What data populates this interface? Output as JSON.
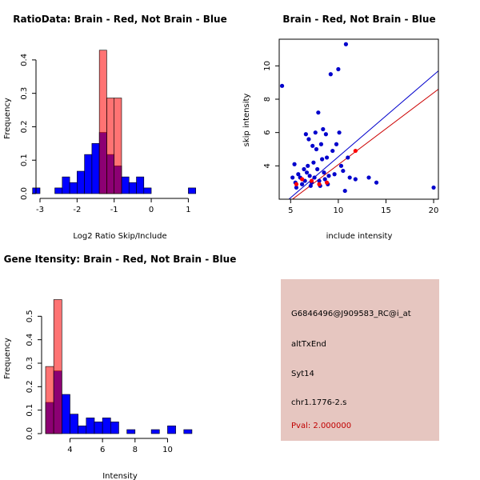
{
  "chart_data": [
    {
      "type": "bar",
      "title": "RatioData: Brain - Red, Not Brain - Blue",
      "xlabel": "Log2 Ratio Skip/Include",
      "ylabel": "Frequency",
      "xlim": [
        -3,
        1.25
      ],
      "ylim": [
        0,
        0.45
      ],
      "xticks": [
        -3,
        -2,
        -1,
        0,
        1
      ],
      "yticks": [
        0.0,
        0.1,
        0.2,
        0.3,
        0.4
      ],
      "series": [
        {
          "name": "Not Brain",
          "color": "#0000ff",
          "bins": [
            [
              -3.2,
              -3.0,
              0.017
            ],
            [
              -2.6,
              -2.4,
              0.017
            ],
            [
              -2.4,
              -2.2,
              0.05
            ],
            [
              -2.2,
              -2.0,
              0.033
            ],
            [
              -2.0,
              -1.8,
              0.067
            ],
            [
              -1.8,
              -1.6,
              0.117
            ],
            [
              -1.6,
              -1.4,
              0.15
            ],
            [
              -1.4,
              -1.2,
              0.183
            ],
            [
              -1.2,
              -1.0,
              0.117
            ],
            [
              -1.0,
              -0.8,
              0.083
            ],
            [
              -0.8,
              -0.6,
              0.05
            ],
            [
              -0.6,
              -0.4,
              0.033
            ],
            [
              -0.4,
              -0.2,
              0.05
            ],
            [
              -0.2,
              0.0,
              0.017
            ],
            [
              1.0,
              1.2,
              0.017
            ]
          ]
        },
        {
          "name": "Brain",
          "color": "#ff0000",
          "bins": [
            [
              -1.4,
              -1.2,
              0.429
            ],
            [
              -1.2,
              -1.0,
              0.286
            ],
            [
              -1.0,
              -0.8,
              0.286
            ]
          ]
        }
      ]
    },
    {
      "type": "scatter",
      "title": "Brain - Red, Not Brain - Blue",
      "xlabel": "include intensity",
      "ylabel": "skip intensity",
      "xlim": [
        3.8,
        20.5
      ],
      "ylim": [
        2.0,
        11.6
      ],
      "xticks": [
        5,
        10,
        15,
        20
      ],
      "yticks": [
        4,
        6,
        8,
        10
      ],
      "series": [
        {
          "name": "Not Brain",
          "color": "#0000cc",
          "points": [
            [
              4.1,
              8.8
            ],
            [
              5.2,
              3.3
            ],
            [
              5.4,
              4.1
            ],
            [
              5.5,
              3.0
            ],
            [
              5.6,
              2.7
            ],
            [
              5.8,
              3.5
            ],
            [
              6.0,
              3.3
            ],
            [
              6.2,
              2.9
            ],
            [
              6.4,
              3.8
            ],
            [
              6.5,
              3.1
            ],
            [
              6.6,
              5.9
            ],
            [
              6.7,
              3.6
            ],
            [
              6.8,
              4.0
            ],
            [
              6.9,
              5.6
            ],
            [
              7.0,
              3.4
            ],
            [
              7.1,
              2.8
            ],
            [
              7.2,
              3.0
            ],
            [
              7.3,
              5.2
            ],
            [
              7.4,
              4.2
            ],
            [
              7.5,
              3.3
            ],
            [
              7.6,
              6.0
            ],
            [
              7.7,
              5.0
            ],
            [
              7.8,
              3.8
            ],
            [
              7.9,
              7.2
            ],
            [
              8.0,
              3.1
            ],
            [
              8.1,
              2.8
            ],
            [
              8.2,
              5.3
            ],
            [
              8.3,
              4.4
            ],
            [
              8.4,
              6.2
            ],
            [
              8.5,
              3.6
            ],
            [
              8.6,
              3.2
            ],
            [
              8.7,
              5.9
            ],
            [
              8.8,
              4.5
            ],
            [
              8.9,
              2.9
            ],
            [
              9.0,
              3.4
            ],
            [
              9.2,
              9.5
            ],
            [
              9.4,
              4.9
            ],
            [
              9.6,
              3.5
            ],
            [
              9.8,
              5.3
            ],
            [
              10.0,
              9.8
            ],
            [
              10.1,
              6.0
            ],
            [
              10.3,
              4.0
            ],
            [
              10.5,
              3.7
            ],
            [
              10.7,
              2.5
            ],
            [
              10.8,
              11.3
            ],
            [
              11.0,
              4.5
            ],
            [
              11.2,
              3.3
            ],
            [
              11.8,
              3.2
            ],
            [
              13.2,
              3.3
            ],
            [
              14.0,
              3.0
            ],
            [
              20.0,
              2.7
            ]
          ]
        },
        {
          "name": "Brain",
          "color": "#ff0000",
          "points": [
            [
              5.6,
              2.9
            ],
            [
              6.2,
              3.2
            ],
            [
              7.2,
              3.1
            ],
            [
              8.0,
              2.9
            ],
            [
              8.8,
              3.0
            ],
            [
              11.8,
              4.9
            ]
          ]
        }
      ],
      "fit_lines": [
        {
          "name": "Not Brain fit",
          "color": "#0000cc",
          "from": [
            3.8,
            1.5
          ],
          "to": [
            20.5,
            9.7
          ]
        },
        {
          "name": "Brain fit",
          "color": "#cc0000",
          "from": [
            3.8,
            1.4
          ],
          "to": [
            20.5,
            8.6
          ]
        }
      ]
    },
    {
      "type": "bar",
      "title": "Gene Itensity: Brain - Red, Not Brain - Blue",
      "xlabel": "Intensity",
      "ylabel": "Frequency",
      "xlim": [
        2.5,
        11.7
      ],
      "ylim": [
        0,
        0.6
      ],
      "xticks": [
        4,
        6,
        8,
        10
      ],
      "yticks": [
        0.0,
        0.1,
        0.2,
        0.3,
        0.4,
        0.5
      ],
      "series": [
        {
          "name": "Not Brain",
          "color": "#0000ff",
          "bins": [
            [
              2.5,
              3.0,
              0.133
            ],
            [
              3.0,
              3.5,
              0.267
            ],
            [
              3.5,
              4.0,
              0.167
            ],
            [
              4.0,
              4.5,
              0.083
            ],
            [
              4.5,
              5.0,
              0.033
            ],
            [
              5.0,
              5.5,
              0.067
            ],
            [
              5.5,
              6.0,
              0.05
            ],
            [
              6.0,
              6.5,
              0.067
            ],
            [
              6.5,
              7.0,
              0.05
            ],
            [
              7.0,
              7.5,
              0.0
            ],
            [
              7.5,
              8.0,
              0.017
            ],
            [
              8.0,
              8.5,
              0.0
            ],
            [
              8.5,
              9.0,
              0.0
            ],
            [
              9.0,
              9.5,
              0.017
            ],
            [
              9.5,
              10.0,
              0.0
            ],
            [
              10.0,
              10.5,
              0.033
            ],
            [
              10.5,
              11.0,
              0.0
            ],
            [
              11.0,
              11.5,
              0.017
            ]
          ]
        },
        {
          "name": "Brain",
          "color": "#ff0000",
          "bins": [
            [
              2.5,
              3.0,
              0.286
            ],
            [
              3.0,
              3.5,
              0.571
            ]
          ]
        }
      ]
    }
  ],
  "info": {
    "probe": "G6846496@J909583_RC@i_at",
    "event_type": "altTxEnd",
    "gene": "Syt14",
    "location": "chr1.1776-2.s",
    "pval": "Pval: 2.000000",
    "panel_color": "#e6c6c0"
  }
}
